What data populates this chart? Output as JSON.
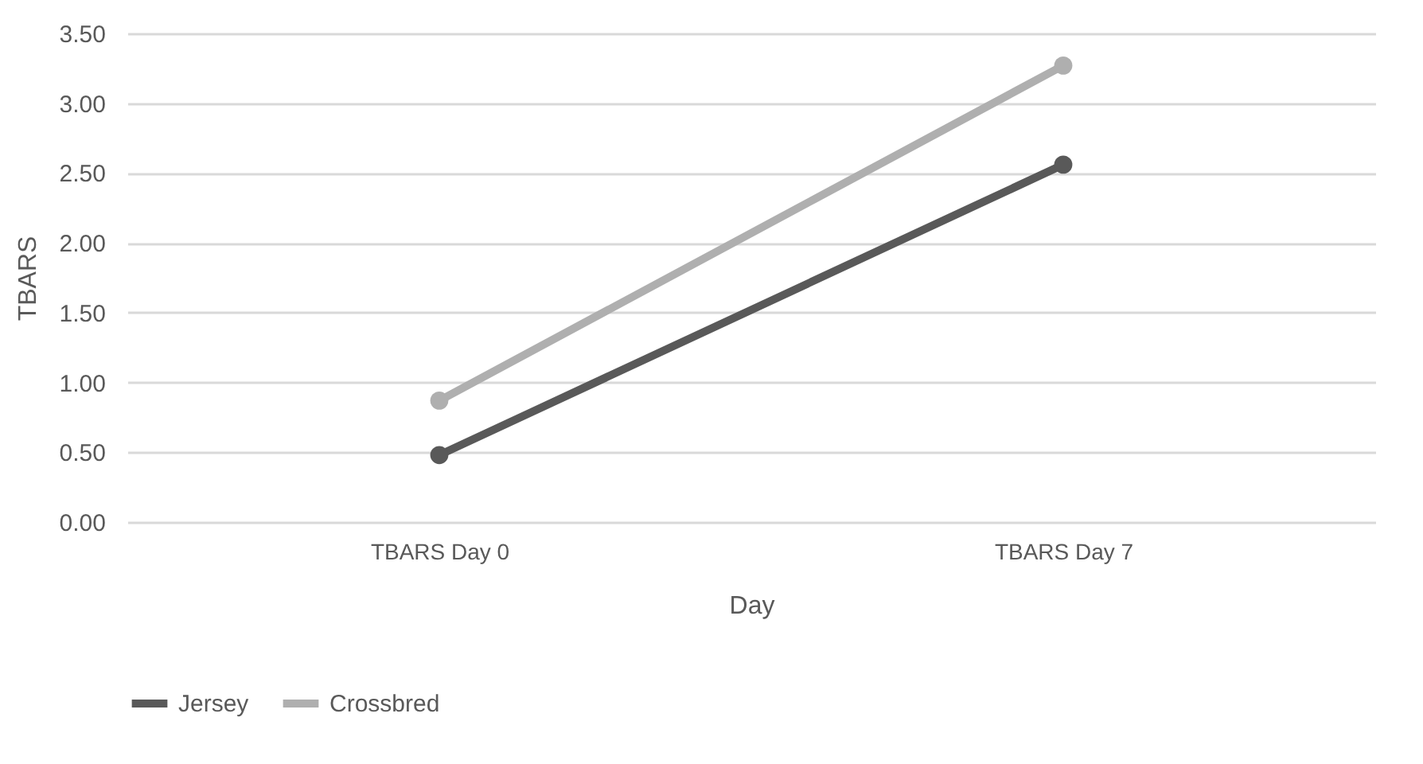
{
  "chart_data": {
    "type": "line",
    "xlabel": "Day",
    "ylabel": "TBARS",
    "categories": [
      "TBARS Day 0",
      "TBARS Day 7"
    ],
    "series": [
      {
        "name": "Jersey",
        "color": "#595959",
        "values": [
          0.48,
          2.56
        ]
      },
      {
        "name": "Crossbred",
        "color": "#afafaf",
        "values": [
          0.87,
          3.27
        ]
      }
    ],
    "ylim": [
      0,
      3.5
    ],
    "yticks": [
      {
        "value": 0,
        "label": "0.00"
      },
      {
        "value": 0.5,
        "label": "0.50"
      },
      {
        "value": 1,
        "label": "1.00"
      },
      {
        "value": 1.5,
        "label": "1.50"
      },
      {
        "value": 2,
        "label": "2.00"
      },
      {
        "value": 2.5,
        "label": "2.50"
      },
      {
        "value": 3,
        "label": "3.00"
      },
      {
        "value": 3.5,
        "label": "3.50"
      }
    ],
    "grid": "y",
    "legend": "bottom",
    "marker": "circle",
    "line_style": "solid"
  }
}
